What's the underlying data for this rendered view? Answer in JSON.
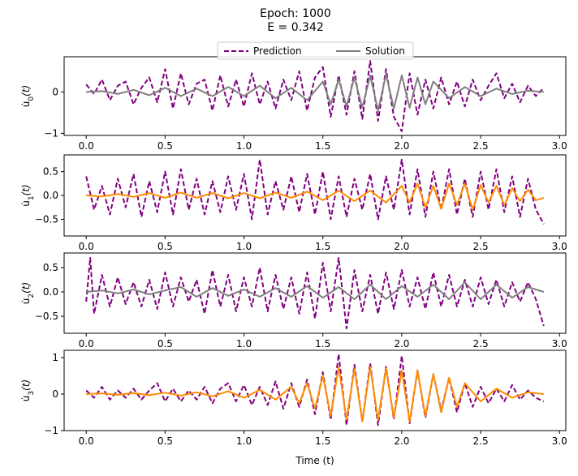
{
  "figure": {
    "title_line1": "Epoch: 1000",
    "title_line2": "E = 0.342"
  },
  "legend": {
    "placement": "top-center",
    "entries": [
      {
        "label": "Prediction",
        "color": "#800080",
        "style": "dashed"
      },
      {
        "label": "Solution",
        "color": "#808080",
        "style": "solid"
      }
    ]
  },
  "colors": {
    "prediction": "#800080",
    "solution_gray": "#808080",
    "solution_orange": "#ff8c00"
  },
  "chart_data": [
    {
      "type": "line",
      "ylabel": "u̇₀(t)",
      "ylabel_base": "u̇",
      "ylabel_sub": "0",
      "ylabel_tail": "(t)",
      "xlabel": "",
      "xlim": [
        -0.14,
        3.04
      ],
      "ylim": [
        -1.05,
        0.85
      ],
      "xticks": [
        "0.0",
        "0.5",
        "1.0",
        "1.5",
        "2.0",
        "2.5",
        "3.0"
      ],
      "xtick_values": [
        0,
        0.5,
        1,
        1.5,
        2,
        2.5,
        3
      ],
      "yticks": [
        "−1",
        "0"
      ],
      "ytick_values": [
        -1,
        0
      ],
      "solution_color": "#808080",
      "series": [
        {
          "name": "Prediction",
          "x_range": [
            0,
            2.9
          ],
          "noise_envelope": [
            [
              0,
              0.1
            ],
            [
              0.5,
              0.3
            ],
            [
              1.0,
              0.35
            ],
            [
              1.4,
              0.4
            ],
            [
              1.8,
              0.55
            ],
            [
              2.0,
              0.6
            ],
            [
              2.4,
              0.35
            ],
            [
              2.9,
              0.2
            ]
          ],
          "x": [
            0.0,
            0.05,
            0.1,
            0.15,
            0.2,
            0.25,
            0.3,
            0.35,
            0.4,
            0.45,
            0.5,
            0.55,
            0.6,
            0.65,
            0.7,
            0.75,
            0.8,
            0.85,
            0.9,
            0.95,
            1.0,
            1.05,
            1.1,
            1.15,
            1.2,
            1.25,
            1.3,
            1.35,
            1.4,
            1.45,
            1.5,
            1.55,
            1.6,
            1.65,
            1.7,
            1.75,
            1.8,
            1.85,
            1.9,
            1.95,
            2.0,
            2.05,
            2.1,
            2.15,
            2.2,
            2.25,
            2.3,
            2.35,
            2.4,
            2.45,
            2.5,
            2.55,
            2.6,
            2.65,
            2.7,
            2.75,
            2.8,
            2.85,
            2.9
          ],
          "y": [
            0.18,
            -0.05,
            0.3,
            -0.2,
            0.15,
            0.25,
            -0.3,
            0.1,
            0.35,
            -0.25,
            0.55,
            -0.4,
            0.45,
            -0.3,
            0.2,
            0.3,
            -0.45,
            0.4,
            -0.35,
            0.3,
            -0.35,
            0.45,
            -0.3,
            0.25,
            -0.4,
            0.3,
            -0.2,
            0.5,
            -0.45,
            0.35,
            0.6,
            -0.6,
            0.4,
            -0.55,
            0.5,
            -0.65,
            0.75,
            -0.7,
            0.55,
            -0.6,
            -0.95,
            0.45,
            -0.55,
            0.3,
            -0.4,
            0.35,
            -0.3,
            0.25,
            -0.35,
            0.3,
            -0.2,
            0.15,
            0.45,
            -0.15,
            0.2,
            -0.25,
            0.15,
            -0.1,
            0.1
          ]
        },
        {
          "name": "Solution",
          "x": [
            0.0,
            0.1,
            0.2,
            0.3,
            0.4,
            0.5,
            0.6,
            0.7,
            0.8,
            0.9,
            1.0,
            1.1,
            1.2,
            1.3,
            1.4,
            1.5,
            1.55,
            1.6,
            1.65,
            1.7,
            1.75,
            1.8,
            1.85,
            1.9,
            1.95,
            2.0,
            2.05,
            2.1,
            2.15,
            2.2,
            2.3,
            2.4,
            2.5,
            2.6,
            2.7,
            2.8,
            2.9
          ],
          "y": [
            0.0,
            0.02,
            -0.05,
            0.05,
            -0.08,
            0.1,
            -0.1,
            0.08,
            -0.1,
            0.12,
            -0.1,
            0.15,
            -0.15,
            0.1,
            -0.2,
            0.25,
            -0.3,
            0.3,
            -0.35,
            0.35,
            -0.38,
            0.4,
            -0.45,
            0.42,
            -0.4,
            0.4,
            -0.38,
            0.35,
            -0.3,
            0.25,
            -0.15,
            0.12,
            -0.1,
            0.08,
            -0.05,
            0.03,
            0.0
          ]
        }
      ]
    },
    {
      "type": "line",
      "ylabel": "u̇₁(t)",
      "ylabel_base": "u̇",
      "ylabel_sub": "1",
      "ylabel_tail": "(t)",
      "xlabel": "",
      "xlim": [
        -0.14,
        3.04
      ],
      "ylim": [
        -0.85,
        0.85
      ],
      "xticks": [
        "0.0",
        "0.5",
        "1.0",
        "1.5",
        "2.0",
        "2.5",
        "3.0"
      ],
      "xtick_values": [
        0,
        0.5,
        1,
        1.5,
        2,
        2.5,
        3
      ],
      "yticks": [
        "−0.5",
        "0.0",
        "0.5"
      ],
      "ytick_values": [
        -0.5,
        0,
        0.5
      ],
      "solution_color": "#ff8c00",
      "series": [
        {
          "name": "Prediction",
          "x": [
            0.0,
            0.05,
            0.1,
            0.15,
            0.2,
            0.25,
            0.3,
            0.35,
            0.4,
            0.45,
            0.5,
            0.55,
            0.6,
            0.65,
            0.7,
            0.75,
            0.8,
            0.85,
            0.9,
            0.95,
            1.0,
            1.05,
            1.1,
            1.15,
            1.2,
            1.25,
            1.3,
            1.35,
            1.4,
            1.45,
            1.5,
            1.55,
            1.6,
            1.65,
            1.7,
            1.75,
            1.8,
            1.85,
            1.9,
            1.95,
            2.0,
            2.05,
            2.1,
            2.15,
            2.2,
            2.25,
            2.3,
            2.35,
            2.4,
            2.45,
            2.5,
            2.55,
            2.6,
            2.65,
            2.7,
            2.75,
            2.8,
            2.85,
            2.9
          ],
          "y": [
            0.4,
            -0.3,
            0.2,
            -0.4,
            0.35,
            -0.25,
            0.45,
            -0.45,
            0.3,
            -0.35,
            0.5,
            -0.4,
            0.55,
            -0.3,
            0.35,
            -0.4,
            0.3,
            -0.35,
            0.4,
            -0.3,
            0.45,
            -0.5,
            0.75,
            -0.4,
            0.3,
            -0.3,
            0.4,
            -0.35,
            0.45,
            -0.4,
            0.5,
            -0.5,
            0.4,
            -0.45,
            0.35,
            -0.3,
            0.45,
            -0.5,
            0.4,
            -0.3,
            0.75,
            -0.4,
            0.55,
            -0.45,
            0.5,
            -0.3,
            0.55,
            -0.4,
            0.35,
            -0.45,
            0.5,
            -0.3,
            0.55,
            -0.35,
            0.4,
            -0.45,
            0.35,
            -0.3,
            -0.6
          ]
        },
        {
          "name": "Solution",
          "x": [
            0.0,
            0.1,
            0.2,
            0.3,
            0.4,
            0.5,
            0.6,
            0.7,
            0.8,
            0.9,
            1.0,
            1.1,
            1.2,
            1.3,
            1.4,
            1.5,
            1.6,
            1.7,
            1.8,
            1.9,
            2.0,
            2.05,
            2.1,
            2.15,
            2.2,
            2.25,
            2.3,
            2.35,
            2.4,
            2.45,
            2.5,
            2.55,
            2.6,
            2.65,
            2.7,
            2.75,
            2.8,
            2.85,
            2.9
          ],
          "y": [
            0.0,
            -0.02,
            0.03,
            -0.03,
            0.05,
            -0.05,
            0.06,
            -0.05,
            0.05,
            -0.06,
            0.05,
            -0.06,
            0.06,
            -0.05,
            0.08,
            -0.1,
            0.1,
            -0.12,
            0.1,
            -0.15,
            0.2,
            -0.15,
            0.25,
            -0.25,
            0.2,
            -0.28,
            0.25,
            -0.2,
            0.25,
            -0.3,
            0.22,
            -0.15,
            0.2,
            -0.2,
            0.15,
            -0.12,
            0.12,
            -0.1,
            -0.05
          ]
        }
      ]
    },
    {
      "type": "line",
      "ylabel": "u̇₂(t)",
      "ylabel_base": "u̇",
      "ylabel_sub": "2",
      "ylabel_tail": "(t)",
      "xlabel": "",
      "xlim": [
        -0.14,
        3.04
      ],
      "ylim": [
        -0.85,
        0.8
      ],
      "xticks": [
        "0.0",
        "0.5",
        "1.0",
        "1.5",
        "2.0",
        "2.5",
        "3.0"
      ],
      "xtick_values": [
        0,
        0.5,
        1,
        1.5,
        2,
        2.5,
        3
      ],
      "yticks": [
        "−0.5",
        "0.0",
        "0.5"
      ],
      "ytick_values": [
        -0.5,
        0,
        0.5
      ],
      "solution_color": "#808080",
      "series": [
        {
          "name": "Prediction",
          "x": [
            0.0,
            0.025,
            0.05,
            0.1,
            0.15,
            0.2,
            0.25,
            0.3,
            0.35,
            0.4,
            0.45,
            0.5,
            0.55,
            0.6,
            0.65,
            0.7,
            0.75,
            0.8,
            0.85,
            0.9,
            0.95,
            1.0,
            1.05,
            1.1,
            1.15,
            1.2,
            1.25,
            1.3,
            1.35,
            1.4,
            1.45,
            1.5,
            1.55,
            1.6,
            1.65,
            1.7,
            1.75,
            1.8,
            1.85,
            1.9,
            1.95,
            2.0,
            2.05,
            2.1,
            2.15,
            2.2,
            2.25,
            2.3,
            2.35,
            2.4,
            2.45,
            2.5,
            2.55,
            2.6,
            2.65,
            2.7,
            2.75,
            2.8,
            2.85,
            2.9
          ],
          "y": [
            -0.2,
            0.7,
            -0.45,
            0.35,
            -0.3,
            0.3,
            -0.25,
            0.2,
            -0.3,
            0.25,
            -0.35,
            0.4,
            -0.3,
            0.3,
            -0.2,
            0.25,
            -0.45,
            0.45,
            -0.3,
            0.35,
            -0.4,
            0.3,
            -0.3,
            0.5,
            -0.4,
            0.35,
            -0.35,
            0.3,
            -0.45,
            0.4,
            -0.55,
            0.6,
            -0.4,
            0.7,
            -0.75,
            0.45,
            -0.4,
            0.35,
            -0.45,
            0.4,
            -0.35,
            0.45,
            -0.3,
            0.3,
            -0.35,
            0.4,
            -0.3,
            0.35,
            -0.3,
            0.25,
            -0.3,
            0.3,
            -0.25,
            0.25,
            -0.3,
            0.2,
            -0.2,
            0.2,
            -0.15,
            -0.7
          ]
        },
        {
          "name": "Solution",
          "x": [
            0.0,
            0.1,
            0.2,
            0.3,
            0.4,
            0.5,
            0.6,
            0.7,
            0.8,
            0.9,
            1.0,
            1.1,
            1.2,
            1.3,
            1.4,
            1.5,
            1.6,
            1.7,
            1.8,
            1.9,
            2.0,
            2.1,
            2.2,
            2.3,
            2.4,
            2.5,
            2.6,
            2.7,
            2.8,
            2.9
          ],
          "y": [
            0.0,
            0.03,
            -0.03,
            0.05,
            -0.05,
            0.03,
            0.1,
            -0.1,
            0.08,
            -0.08,
            0.05,
            -0.1,
            0.08,
            -0.1,
            0.12,
            -0.12,
            0.1,
            -0.15,
            0.15,
            -0.15,
            0.12,
            -0.1,
            0.15,
            -0.15,
            0.2,
            -0.15,
            0.15,
            -0.12,
            0.1,
            0.0
          ]
        }
      ]
    },
    {
      "type": "line",
      "ylabel": "u̇₃(t)",
      "ylabel_base": "u̇",
      "ylabel_sub": "3",
      "ylabel_tail": "(t)",
      "xlabel": "Time (t)",
      "xlim": [
        -0.14,
        3.04
      ],
      "ylim": [
        -1.0,
        1.2
      ],
      "xticks": [
        "0.0",
        "0.5",
        "1.0",
        "1.5",
        "2.0",
        "2.5",
        "3.0"
      ],
      "xtick_values": [
        0,
        0.5,
        1,
        1.5,
        2,
        2.5,
        3
      ],
      "yticks": [
        "−1",
        "0",
        "1"
      ],
      "ytick_values": [
        -1,
        0,
        1
      ],
      "solution_color": "#ff8c00",
      "series": [
        {
          "name": "Prediction",
          "x": [
            0.0,
            0.05,
            0.1,
            0.15,
            0.2,
            0.25,
            0.3,
            0.35,
            0.4,
            0.45,
            0.5,
            0.55,
            0.6,
            0.65,
            0.7,
            0.75,
            0.8,
            0.85,
            0.9,
            0.95,
            1.0,
            1.05,
            1.1,
            1.15,
            1.2,
            1.25,
            1.3,
            1.35,
            1.4,
            1.45,
            1.5,
            1.55,
            1.6,
            1.65,
            1.7,
            1.75,
            1.8,
            1.85,
            1.9,
            1.95,
            2.0,
            2.05,
            2.1,
            2.15,
            2.2,
            2.25,
            2.3,
            2.35,
            2.4,
            2.45,
            2.5,
            2.55,
            2.6,
            2.65,
            2.7,
            2.75,
            2.8,
            2.85,
            2.9
          ],
          "y": [
            0.1,
            -0.1,
            0.2,
            -0.15,
            0.1,
            -0.1,
            0.15,
            -0.15,
            0.1,
            0.3,
            -0.2,
            0.15,
            -0.2,
            0.1,
            -0.15,
            0.2,
            -0.25,
            0.15,
            0.3,
            -0.2,
            0.25,
            -0.3,
            0.2,
            -0.3,
            0.35,
            -0.4,
            0.3,
            -0.35,
            0.4,
            -0.55,
            0.6,
            -0.7,
            1.1,
            -0.85,
            0.8,
            -0.75,
            0.85,
            -0.85,
            0.75,
            -0.7,
            1.05,
            -0.8,
            0.65,
            -0.65,
            0.55,
            -0.45,
            0.45,
            -0.5,
            0.3,
            -0.35,
            0.2,
            -0.25,
            0.15,
            -0.2,
            0.25,
            -0.15,
            0.1,
            -0.1,
            -0.2
          ]
        },
        {
          "name": "Solution",
          "x": [
            0.0,
            0.1,
            0.2,
            0.3,
            0.4,
            0.5,
            0.6,
            0.7,
            0.8,
            0.9,
            1.0,
            1.1,
            1.2,
            1.3,
            1.35,
            1.4,
            1.45,
            1.5,
            1.55,
            1.6,
            1.65,
            1.7,
            1.75,
            1.8,
            1.85,
            1.9,
            1.95,
            2.0,
            2.05,
            2.1,
            2.15,
            2.2,
            2.25,
            2.3,
            2.35,
            2.4,
            2.5,
            2.6,
            2.7,
            2.8,
            2.9
          ],
          "y": [
            0.0,
            0.02,
            -0.02,
            0.03,
            -0.03,
            0.04,
            -0.04,
            0.05,
            -0.06,
            0.08,
            -0.1,
            0.12,
            -0.15,
            0.2,
            -0.25,
            0.3,
            -0.4,
            0.5,
            -0.6,
            0.75,
            -0.7,
            0.7,
            -0.75,
            0.75,
            -0.7,
            0.7,
            -0.65,
            0.65,
            -0.75,
            0.65,
            -0.6,
            0.55,
            -0.5,
            0.45,
            -0.35,
            0.3,
            -0.2,
            0.15,
            -0.1,
            0.05,
            0.0
          ]
        }
      ]
    }
  ]
}
